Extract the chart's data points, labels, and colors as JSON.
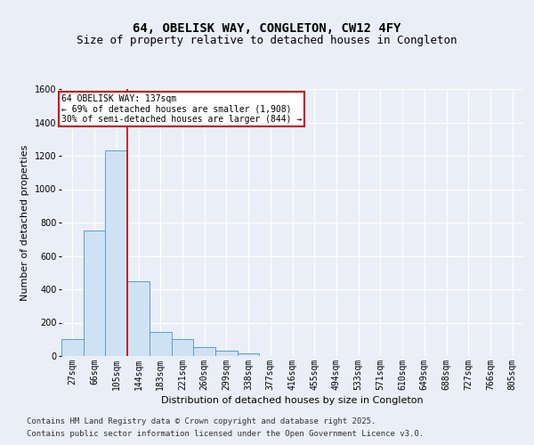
{
  "title_line1": "64, OBELISK WAY, CONGLETON, CW12 4FY",
  "title_line2": "Size of property relative to detached houses in Congleton",
  "xlabel": "Distribution of detached houses by size in Congleton",
  "ylabel": "Number of detached properties",
  "categories": [
    "27sqm",
    "66sqm",
    "105sqm",
    "144sqm",
    "183sqm",
    "221sqm",
    "260sqm",
    "299sqm",
    "338sqm",
    "377sqm",
    "416sqm",
    "455sqm",
    "494sqm",
    "533sqm",
    "571sqm",
    "610sqm",
    "649sqm",
    "688sqm",
    "727sqm",
    "766sqm",
    "805sqm"
  ],
  "values": [
    100,
    750,
    1230,
    450,
    145,
    100,
    55,
    30,
    15,
    0,
    0,
    0,
    0,
    0,
    0,
    0,
    0,
    0,
    0,
    0,
    0
  ],
  "bar_color": "#cfe2f3",
  "bar_edge_color": "#5b9bd5",
  "vline_pos": 2.5,
  "vline_color": "#cc0000",
  "annotation_text": "64 OBELISK WAY: 137sqm\n← 69% of detached houses are smaller (1,908)\n30% of semi-detached houses are larger (844) →",
  "annotation_box_color": "#cc0000",
  "ylim": [
    0,
    1600
  ],
  "yticks": [
    0,
    200,
    400,
    600,
    800,
    1000,
    1200,
    1400,
    1600
  ],
  "footer_line1": "Contains HM Land Registry data © Crown copyright and database right 2025.",
  "footer_line2": "Contains public sector information licensed under the Open Government Licence v3.0.",
  "background_color": "#eaeff7",
  "plot_bg_color": "#eaeff7",
  "grid_color": "#ffffff",
  "title_fontsize": 10,
  "subtitle_fontsize": 9,
  "axis_label_fontsize": 8,
  "tick_fontsize": 7,
  "annotation_fontsize": 7,
  "footer_fontsize": 6.5
}
